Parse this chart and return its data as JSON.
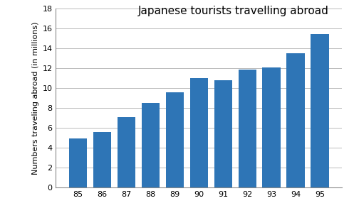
{
  "categories": [
    "85",
    "86",
    "87",
    "88",
    "89",
    "90",
    "91",
    "92",
    "93",
    "94",
    "95"
  ],
  "values": [
    4.95,
    5.6,
    7.1,
    8.5,
    9.55,
    11.0,
    10.8,
    11.85,
    12.05,
    13.5,
    15.4
  ],
  "bar_color": "#2E75B6",
  "title": "Japanese tourists travelling abroad",
  "ylabel": "Numbers traveling abroad (in millions)",
  "ylim": [
    0,
    18
  ],
  "yticks": [
    0,
    2,
    4,
    6,
    8,
    10,
    12,
    14,
    16,
    18
  ],
  "title_fontsize": 11,
  "axis_label_fontsize": 8,
  "tick_fontsize": 8,
  "background_color": "#FFFFFF",
  "grid_color": "#BBBBBB"
}
